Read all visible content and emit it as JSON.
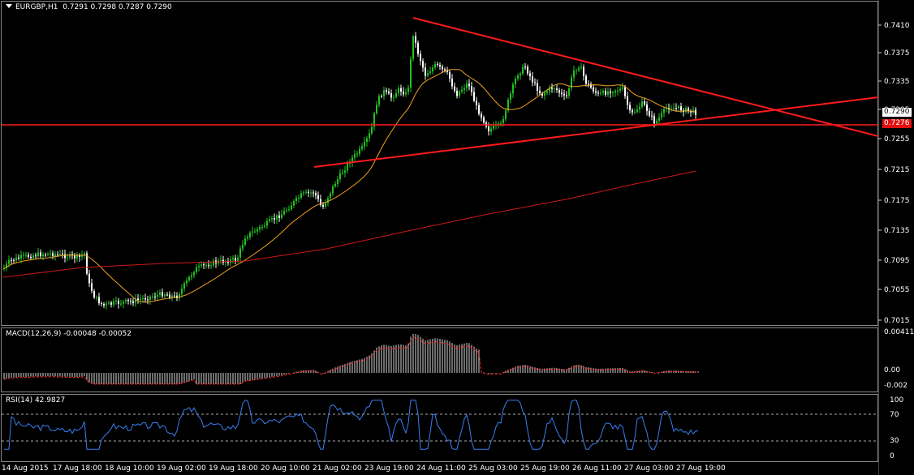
{
  "main": {
    "symbol": "EURGBP,H1",
    "ohlc": "0.7291 0.7298 0.7287 0.7290",
    "price_ticks": [
      "0.7410",
      "0.7375",
      "0.7335",
      "0.7295",
      "0.7255",
      "0.7215",
      "0.7175",
      "0.7135",
      "0.7095",
      "0.7055",
      "0.7015"
    ],
    "current_price": "0.7290",
    "line_price": "0.7276"
  },
  "macd": {
    "title": "MACD(12,26,9) -0.00048 -0.00052",
    "ticks": [
      "0.00411",
      "0.00",
      "-0.002"
    ]
  },
  "rsi": {
    "title": "RSI(14) 42.9827",
    "ticks": [
      "100",
      "70",
      "30",
      "0"
    ]
  },
  "time_labels": [
    "14 Aug 2015",
    "17 Aug 18:00",
    "18 Aug 10:00",
    "19 Aug 02:00",
    "19 Aug 18:00",
    "20 Aug 10:00",
    "21 Aug 02:00",
    "23 Aug 19:00",
    "24 Aug 11:00",
    "25 Aug 03:00",
    "25 Aug 19:00",
    "26 Aug 11:00",
    "27 Aug 03:00",
    "27 Aug 19:00"
  ],
  "colors": {
    "bull": "#22c322",
    "bear": "#ffffff",
    "trend": "#ff1a1a",
    "ma_fast": "#f0a020",
    "ma_slow": "#d01818",
    "rsi": "#3a7ef0",
    "macd_sig": "#ff2020"
  }
}
